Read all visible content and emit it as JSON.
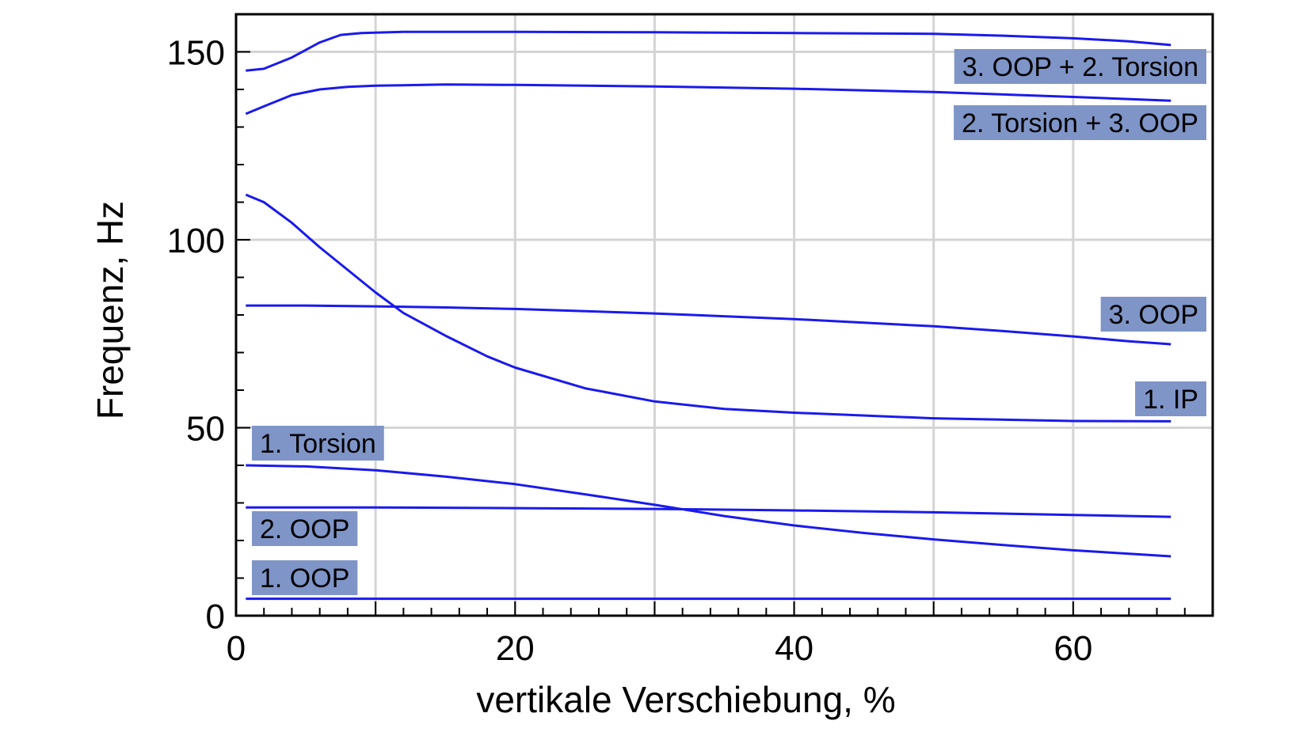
{
  "chart_data": {
    "type": "line",
    "xlabel": "vertikale Verschiebung, %",
    "ylabel": "Frequenz, Hz",
    "xlim": [
      0,
      70
    ],
    "ylim": [
      0,
      160
    ],
    "xticks": [
      0,
      20,
      40,
      60
    ],
    "yticks": [
      0,
      50,
      100,
      150
    ],
    "x_minor_step": 2,
    "y_minor_step": 10,
    "grid": true,
    "colors": {
      "line": "#1a1aee",
      "label_bg": "#7f95c8",
      "grid": "#d4d4d4",
      "axis": "#000000"
    },
    "series": [
      {
        "name": "3. OOP + 2. Torsion",
        "x": [
          0.7,
          2,
          4,
          6,
          7.5,
          9,
          12,
          20,
          30,
          40,
          50,
          55,
          60,
          64,
          67
        ],
        "y": [
          145,
          145.5,
          148.5,
          152.5,
          154.5,
          155,
          155.3,
          155.3,
          155.2,
          155.0,
          154.8,
          154.3,
          153.6,
          152.8,
          151.8
        ]
      },
      {
        "name": "2. Torsion + 3. OOP",
        "x": [
          0.7,
          2,
          4,
          6,
          8,
          10,
          15,
          20,
          30,
          40,
          50,
          60,
          67
        ],
        "y": [
          133.5,
          135.5,
          138.5,
          140,
          140.7,
          141,
          141.3,
          141.2,
          140.8,
          140.2,
          139.3,
          138.0,
          137.0
        ]
      },
      {
        "name": "3. OOP",
        "x": [
          0.7,
          5,
          10,
          15,
          20,
          30,
          40,
          50,
          55,
          60,
          64,
          67
        ],
        "y": [
          82.5,
          82.5,
          82.3,
          82.0,
          81.6,
          80.4,
          78.9,
          77.0,
          75.7,
          74.3,
          73.0,
          72.2
        ]
      },
      {
        "name": "1. IP",
        "x": [
          0.7,
          2,
          4,
          6,
          8,
          10,
          12,
          15,
          18,
          20,
          25,
          30,
          35,
          40,
          50,
          60,
          67
        ],
        "y": [
          112,
          110,
          104.5,
          98,
          92,
          86,
          80.5,
          74.5,
          69,
          66,
          60.5,
          57,
          55,
          54,
          52.5,
          51.8,
          51.7
        ]
      },
      {
        "name": "1. Torsion",
        "x": [
          0.7,
          5,
          10,
          15,
          20,
          25,
          30,
          35,
          40,
          45,
          50,
          55,
          60,
          67
        ],
        "y": [
          40,
          39.7,
          38.7,
          37,
          35,
          32.3,
          29.5,
          26.5,
          24,
          22,
          20.3,
          18.8,
          17.4,
          15.8
        ]
      },
      {
        "name": "2. OOP",
        "x": [
          0.7,
          10,
          20,
          30,
          40,
          50,
          60,
          67
        ],
        "y": [
          28.8,
          28.8,
          28.6,
          28.4,
          28.0,
          27.5,
          26.8,
          26.3
        ]
      },
      {
        "name": "1. OOP",
        "x": [
          0.7,
          20,
          40,
          60,
          67
        ],
        "y": [
          4.5,
          4.5,
          4.5,
          4.5,
          4.5
        ]
      }
    ]
  }
}
